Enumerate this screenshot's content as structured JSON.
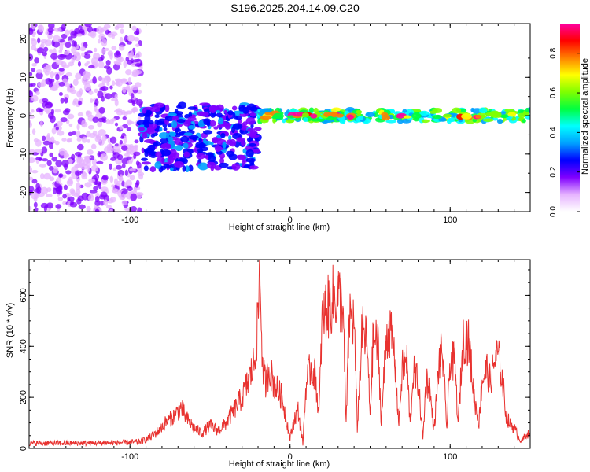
{
  "title": "S196.2025.204.14.09.C20",
  "colors": {
    "snr_line": "#e8322f",
    "colormap": [
      "#ffffff",
      "#e6b3ff",
      "#8000ff",
      "#0000ff",
      "#00a0ff",
      "#00ffff",
      "#00ff40",
      "#80ff00",
      "#ffff00",
      "#ff8000",
      "#ff0000",
      "#ff00a0"
    ]
  },
  "chart_data": [
    {
      "type": "heatmap",
      "xlabel": "Height of straight line (km)",
      "ylabel": "Frequency (Hz)",
      "xlim": [
        -163,
        150
      ],
      "ylim": [
        -25,
        24
      ],
      "xticks": [
        -100,
        0,
        100
      ],
      "yticks": [
        -20,
        -10,
        0,
        10,
        20
      ],
      "colorbar": {
        "label": "Normalized spectral amplitude",
        "range": [
          0,
          0.95
        ],
        "ticks": [
          "0.0",
          "0.2",
          "0.4",
          "0.6",
          "0.8"
        ]
      },
      "features": [
        {
          "description": "diffuse noise",
          "x": [
            -163,
            -93
          ],
          "y": [
            -25,
            24
          ],
          "amplitude": 0.15
        },
        {
          "description": "scattered signal",
          "x": [
            -93,
            -20
          ],
          "y": [
            -14,
            3
          ],
          "amplitude": 0.3
        },
        {
          "description": "narrow band near 0 Hz",
          "x": [
            -20,
            150
          ],
          "y": [
            -1.5,
            1.5
          ],
          "amplitude": 0.6
        },
        {
          "description": "peak amplitude spots",
          "x": [
            -18,
            140
          ],
          "y": [
            -0.6,
            0.6
          ],
          "amplitude": 0.95
        }
      ]
    },
    {
      "type": "line",
      "xlabel": "Height of straight line (km)",
      "ylabel": "SNR (10 * v/v)",
      "xlim": [
        -163,
        150
      ],
      "ylim": [
        0,
        740
      ],
      "xticks": [
        -100,
        0,
        100
      ],
      "yticks": [
        0,
        200,
        400,
        600
      ],
      "series": [
        {
          "x": [
            -163,
            -150,
            -130,
            -110,
            -95,
            -88,
            -82,
            -78,
            -72,
            -68,
            -65,
            -60,
            -55,
            -50,
            -45,
            -40,
            -35,
            -30,
            -25,
            -22,
            -20,
            -19,
            -17,
            -15,
            -13,
            -10,
            -5,
            0,
            3,
            5,
            8,
            10,
            13,
            16,
            18,
            20,
            22,
            25,
            27,
            30,
            33,
            35,
            37,
            40,
            42,
            45,
            48,
            50,
            52,
            55,
            57,
            60,
            62,
            65,
            68,
            70,
            73,
            75,
            77,
            80,
            83,
            85,
            87,
            90,
            93,
            95,
            98,
            100,
            103,
            105,
            108,
            110,
            112,
            115,
            118,
            120,
            123,
            125,
            128,
            130,
            133,
            135,
            137,
            140,
            143,
            145,
            148,
            150
          ],
          "y": [
            20,
            20,
            20,
            22,
            25,
            40,
            70,
            100,
            130,
            160,
            120,
            80,
            60,
            90,
            70,
            100,
            150,
            200,
            280,
            350,
            500,
            720,
            300,
            250,
            320,
            250,
            200,
            40,
            120,
            150,
            20,
            250,
            320,
            280,
            120,
            500,
            540,
            560,
            590,
            600,
            560,
            90,
            520,
            500,
            80,
            460,
            420,
            130,
            440,
            400,
            100,
            430,
            470,
            380,
            90,
            310,
            340,
            90,
            300,
            260,
            40,
            270,
            240,
            70,
            330,
            390,
            80,
            350,
            330,
            90,
            420,
            440,
            400,
            200,
            100,
            270,
            310,
            260,
            350,
            370,
            250,
            130,
            100,
            80,
            40,
            30,
            60,
            50
          ]
        }
      ]
    }
  ]
}
